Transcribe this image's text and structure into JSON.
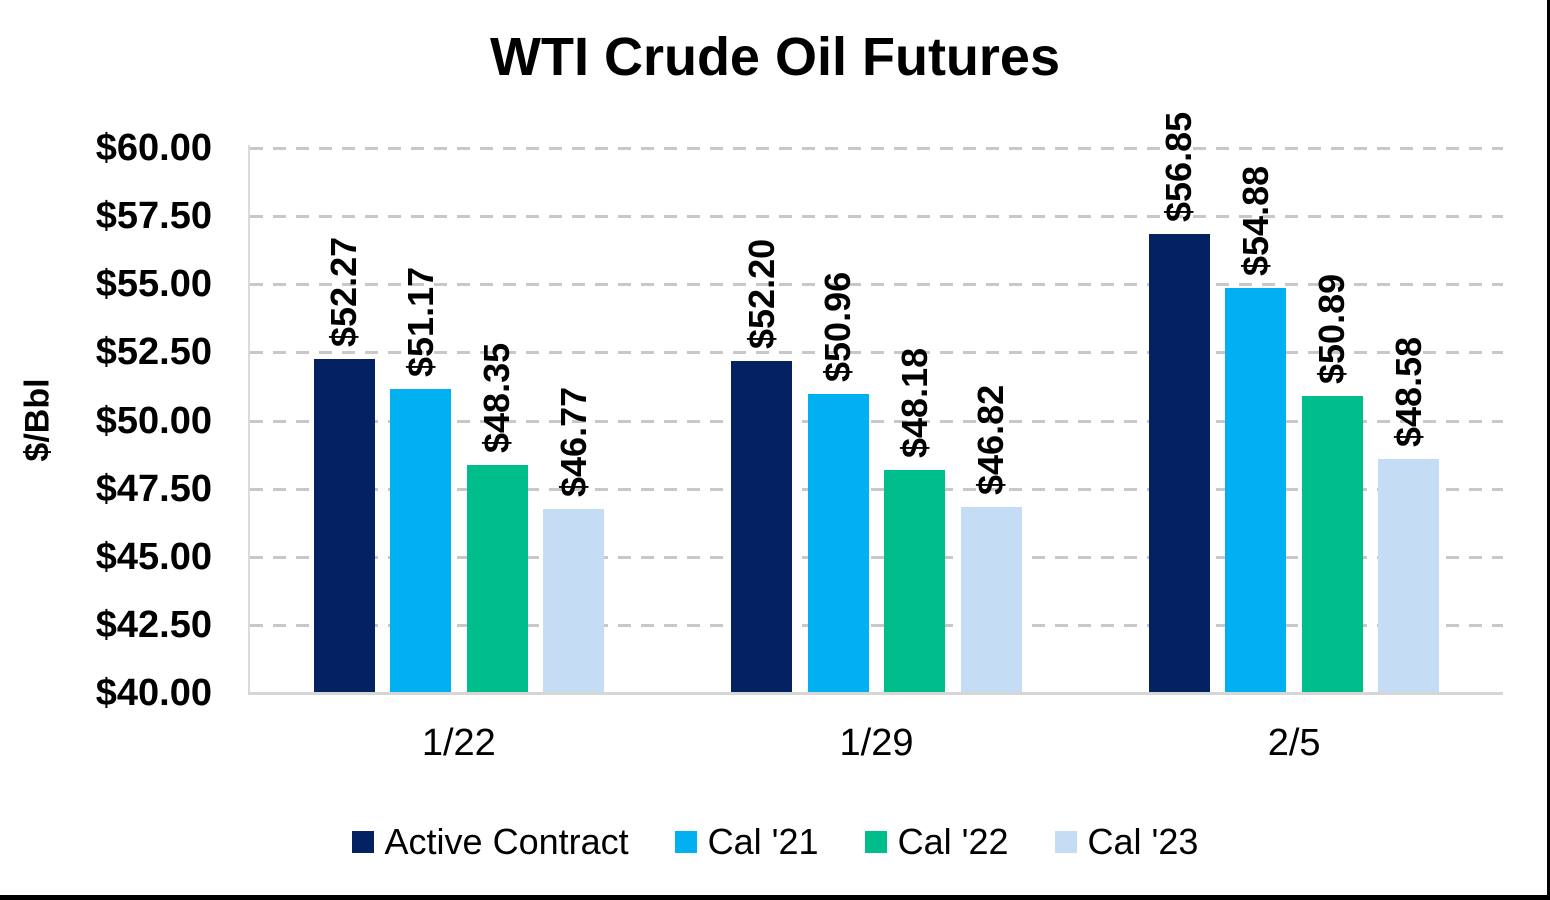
{
  "chart_data": {
    "type": "bar",
    "title": "WTI Crude Oil Futures",
    "ylabel": "$/Bbl",
    "xlabel": "",
    "categories": [
      "1/22",
      "1/29",
      "2/5"
    ],
    "series": [
      {
        "name": "Active Contract",
        "color": "#042262",
        "values": [
          52.27,
          52.2,
          56.85
        ],
        "labels": [
          "$52.27",
          "$52.20",
          "$56.85"
        ]
      },
      {
        "name": "Cal '21",
        "color": "#00B0F0",
        "values": [
          51.17,
          50.96,
          54.88
        ],
        "labels": [
          "$51.17",
          "$50.96",
          "$54.88"
        ]
      },
      {
        "name": "Cal '22",
        "color": "#00BE8C",
        "values": [
          48.35,
          48.18,
          50.89
        ],
        "labels": [
          "$48.35",
          "$48.18",
          "$50.89"
        ]
      },
      {
        "name": "Cal '23",
        "color": "#C5DDF4",
        "values": [
          46.77,
          46.82,
          48.58
        ],
        "labels": [
          "$46.77",
          "$46.82",
          "$48.58"
        ]
      }
    ],
    "ylim": [
      40,
      60
    ],
    "yticks": [
      {
        "value": 60.0,
        "label": "$60.00"
      },
      {
        "value": 57.5,
        "label": "$57.50"
      },
      {
        "value": 55.0,
        "label": "$55.00"
      },
      {
        "value": 52.5,
        "label": "$52.50"
      },
      {
        "value": 50.0,
        "label": "$50.00"
      },
      {
        "value": 47.5,
        "label": "$47.50"
      },
      {
        "value": 45.0,
        "label": "$45.00"
      },
      {
        "value": 42.5,
        "label": "$42.50"
      },
      {
        "value": 40.0,
        "label": "$40.00"
      }
    ],
    "grid": "horizontal-dashed",
    "legend_position": "bottom",
    "data_label_rotation": -90
  },
  "colors": {
    "background": "#FFFFFF",
    "text": "#000000",
    "gridline": "#C8C8C8",
    "baseline": "#D6D6D6",
    "axis_line": "#DADADA",
    "page_border": "#000000"
  }
}
